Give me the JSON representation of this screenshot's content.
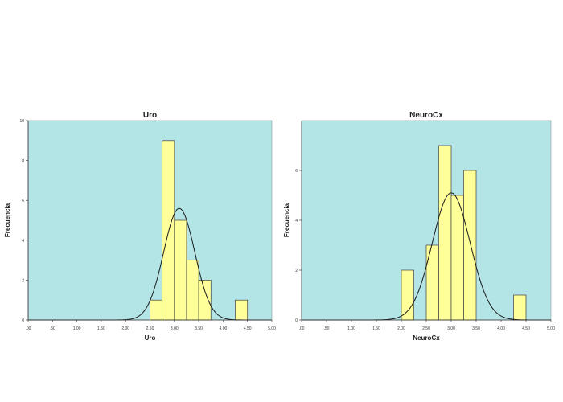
{
  "chart_data": [
    {
      "type": "bar",
      "title": "Uro",
      "xlabel": "Uro",
      "ylabel": "Frecuencia",
      "xlim": [
        0.0,
        5.0
      ],
      "ylim": [
        0,
        10
      ],
      "x_ticks": [
        0.0,
        0.5,
        1.0,
        1.5,
        2.0,
        2.5,
        3.0,
        3.5,
        4.0,
        4.5,
        5.0
      ],
      "x_tick_labels": [
        ",00",
        ",50",
        "1,00",
        "1,50",
        "2,00",
        "2,50",
        "3,00",
        "3,50",
        "4,00",
        "4,50",
        "5,00"
      ],
      "y_ticks": [
        0,
        2,
        4,
        6,
        8,
        10
      ],
      "y_tick_labels": [
        "0",
        "2",
        "4",
        "6",
        "8",
        "10"
      ],
      "bin_width": 0.25,
      "bins": [
        {
          "start": 2.5,
          "end": 2.75,
          "count": 1
        },
        {
          "start": 2.75,
          "end": 3.0,
          "count": 9
        },
        {
          "start": 3.0,
          "end": 3.25,
          "count": 5
        },
        {
          "start": 3.25,
          "end": 3.5,
          "count": 3
        },
        {
          "start": 3.5,
          "end": 3.75,
          "count": 2
        },
        {
          "start": 4.25,
          "end": 4.5,
          "count": 1
        }
      ],
      "normal_curve": {
        "mean": 3.1,
        "peak": 5.6,
        "sd": 0.32
      },
      "grid": false
    },
    {
      "type": "bar",
      "title": "NeuroCx",
      "xlabel": "NeuroCx",
      "ylabel": "Frecuencia",
      "xlim": [
        0.0,
        5.0
      ],
      "ylim": [
        0,
        8
      ],
      "x_ticks": [
        0.0,
        0.5,
        1.0,
        1.5,
        2.0,
        2.5,
        3.0,
        3.5,
        4.0,
        4.5,
        5.0
      ],
      "x_tick_labels": [
        ",00",
        ",50",
        "1,00",
        "1,50",
        "2,00",
        "2,50",
        "3,00",
        "3,50",
        "4,00",
        "4,50",
        "5,00"
      ],
      "y_ticks": [
        0,
        2,
        4,
        6
      ],
      "y_tick_labels": [
        "0",
        "2",
        "4",
        "6"
      ],
      "bin_width": 0.25,
      "bins": [
        {
          "start": 2.0,
          "end": 2.25,
          "count": 2
        },
        {
          "start": 2.5,
          "end": 2.75,
          "count": 3
        },
        {
          "start": 2.75,
          "end": 3.0,
          "count": 7
        },
        {
          "start": 3.0,
          "end": 3.25,
          "count": 5
        },
        {
          "start": 3.25,
          "end": 3.5,
          "count": 6
        },
        {
          "start": 4.25,
          "end": 4.5,
          "count": 1
        }
      ],
      "normal_curve": {
        "mean": 3.0,
        "peak": 5.1,
        "sd": 0.38
      },
      "grid": false
    }
  ],
  "colors": {
    "plot_background": "#b3e4e6",
    "bar_fill": "#ffff99",
    "bar_stroke": "#404040",
    "curve": "#1a1a1a",
    "axis": "#333333"
  }
}
